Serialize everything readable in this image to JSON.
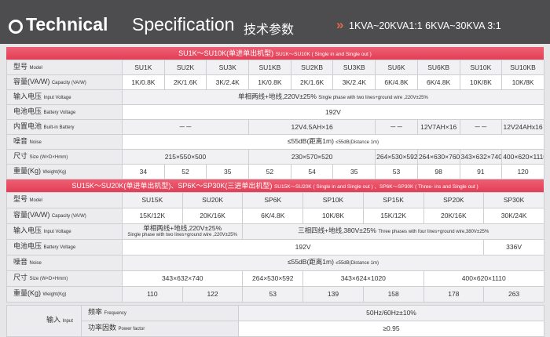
{
  "header": {
    "title_bold": "Technical",
    "title_light": "Specification",
    "title_cn": "技术参数",
    "range": "1KVA~20KVA1:1   6KVA~30KVA 3:1"
  },
  "table1": {
    "caption_cn": "SU1K～SU10K(单进单出机型)",
    "caption_en": "SU1K～SU10K ( Single in and Single out )",
    "rows": [
      {
        "label_cn": "型号",
        "label_en": "Model",
        "cells": [
          "SU1K",
          "SU2K",
          "SU3K",
          "SU1KB",
          "SU2KB",
          "SU3KB",
          "SU6K",
          "SU6KB",
          "SU10K",
          "SU10KB"
        ]
      },
      {
        "label_cn": "容量(VA/W)",
        "label_en": "Capacity (VA/W)",
        "cells": [
          "1K/0.8K",
          "2K/1.6K",
          "3K/2.4K",
          "1K/0.8K",
          "2K/1.6K",
          "3K/2.4K",
          "6K/4.8K",
          "6K/4.8K",
          "10K/8K",
          "10K/8K"
        ]
      },
      {
        "label_cn": "输入电压",
        "label_en": "Input Voltage",
        "cells": [
          {
            "cn": "单相两线+地线,220V±25%",
            "en": "Single phase with two lines+ground wire ,220V±25%"
          }
        ]
      },
      {
        "label_cn": "电池电压",
        "label_en": "Battery Voltage",
        "cells": [
          "192V"
        ]
      },
      {
        "label_cn": "内置电池",
        "label_en": "Built-in Battery",
        "cells": [
          "－－",
          "12V4.5AH×16",
          "－－",
          "12V7AH×16",
          "－－",
          "12V24AHx16"
        ]
      },
      {
        "label_cn": "噪音",
        "label_en": "Noise",
        "cells": [
          {
            "cn": "≤55dB(距离1m)",
            "en": "≤55dB(Distance 1m)"
          }
        ]
      },
      {
        "label_cn": "尺寸",
        "label_en": "Size (W×D×Hmm)",
        "cells": [
          "215×550×500",
          "230×570×520",
          "264×530×592",
          "264×630×760",
          "343×632×740",
          "400×620×1110"
        ]
      },
      {
        "label_cn": "重量(Kg)",
        "label_en": "Weight(Kg)",
        "cells": [
          "34",
          "52",
          "35",
          "52",
          "54",
          "35",
          "53",
          "98",
          "91",
          "120"
        ]
      }
    ]
  },
  "table2": {
    "caption_cn": "SU15K～SU20K(单进单出机型)、SP6K～SP30K(三进单出机型)",
    "caption_en": "SU15K～SU20K ( Single in and Single out ) 、SP6K～SP30K ( Three- ins and Single out )",
    "rows": [
      {
        "label_cn": "型号",
        "label_en": "Model",
        "cells": [
          "SU15K",
          "SU20K",
          "SP6K",
          "SP10K",
          "SP15K",
          "SP20K",
          "SP30K"
        ]
      },
      {
        "label_cn": "容量(VA/W)",
        "label_en": "Capacity (VA/W)",
        "cells": [
          "15K/12K",
          "20K/16K",
          "6K/4.8K",
          "10K/8K",
          "15K/12K",
          "20K/16K",
          "30K/24K"
        ]
      },
      {
        "label_cn": "输入电压",
        "label_en": "Input Voltage",
        "cells": [
          {
            "cn": "单相两线+地线,220V±25%",
            "en": "Single phase with two lines+ground wire ,220V±25%"
          },
          {
            "cn": "三相四线+地线,380V±25%",
            "en": "Three phases with four lines+ground wire,380V±25%"
          }
        ]
      },
      {
        "label_cn": "电池电压",
        "label_en": "Battery Voltage",
        "cells": [
          "192V",
          "336V"
        ]
      },
      {
        "label_cn": "噪音",
        "label_en": "Noise",
        "cells": [
          {
            "cn": "≤55dB(距离1m)",
            "en": "≤55dB(Distance 1m)"
          }
        ]
      },
      {
        "label_cn": "尺寸",
        "label_en": "Size (W×D×Hmm)",
        "cells": [
          "343×632×740",
          "264×530×592",
          "343×624×1020",
          "400×620×1110"
        ]
      },
      {
        "label_cn": "重量(Kg)",
        "label_en": "Weight(Kg)",
        "cells": [
          "110",
          "122",
          "53",
          "139",
          "158",
          "178",
          "263"
        ]
      }
    ]
  },
  "input": {
    "label_cn": "输入",
    "label_en": "Input",
    "rows": [
      {
        "label_cn": "频率",
        "label_en": "Frequency",
        "value": "50Hz/60Hz±10%"
      },
      {
        "label_cn": "功率因数",
        "label_en": "Power factor",
        "value": "≥0.95"
      }
    ]
  }
}
